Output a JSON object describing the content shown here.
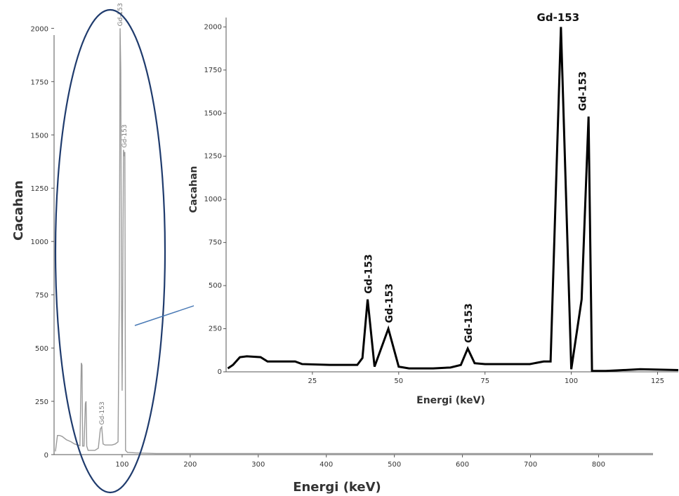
{
  "chart_data": [
    {
      "type": "line",
      "panel": "full-spectrum",
      "xlabel": "Energi (keV)",
      "ylabel": "Cacahan",
      "xlim": [
        0,
        880
      ],
      "ylim": [
        0,
        2100
      ],
      "x_ticks": [
        100,
        200,
        300,
        400,
        500,
        600,
        700,
        800
      ],
      "y_ticks": [
        0,
        250,
        500,
        750,
        1000,
        1250,
        1500,
        1750,
        2000
      ],
      "tick_labels_x": [
        "100",
        "200",
        "300",
        "400",
        "500",
        "600",
        "700",
        "800"
      ],
      "tick_labels_y": [
        "0",
        "250",
        "500",
        "750",
        "1000",
        "1250",
        "1500",
        "1750",
        "2000"
      ],
      "series": [
        {
          "color": "#9a9a9a",
          "x": [
            2,
            5,
            8,
            12,
            18,
            25,
            30,
            35,
            38,
            40,
            41,
            42,
            44,
            46,
            47,
            48,
            50,
            55,
            60,
            65,
            68,
            70,
            72,
            75,
            80,
            85,
            90,
            94,
            96,
            97,
            98,
            99,
            100,
            102,
            103,
            104,
            105,
            108,
            110,
            120,
            150,
            200,
            300,
            500,
            700,
            880
          ],
          "y": [
            15,
            90,
            90,
            85,
            70,
            60,
            50,
            45,
            42,
            430,
            420,
            40,
            40,
            240,
            250,
            40,
            20,
            20,
            20,
            30,
            120,
            130,
            50,
            45,
            45,
            45,
            50,
            60,
            800,
            2000,
            1800,
            800,
            300,
            1430,
            1400,
            1420,
            20,
            10,
            10,
            8,
            5,
            5,
            5,
            5,
            5,
            5
          ]
        }
      ],
      "annotations": [
        {
          "text": "Gd-153",
          "x": 97,
          "y": 2000
        },
        {
          "text": "Gd-153",
          "x": 103,
          "y": 1430
        },
        {
          "text": "Gd-153",
          "x": 70,
          "y": 130
        }
      ]
    },
    {
      "type": "line",
      "panel": "zoomed-inset",
      "xlabel": "Energi (keV)",
      "ylabel": "Cacahan",
      "xlim": [
        0,
        131
      ],
      "ylim": [
        0,
        2030
      ],
      "x_ticks": [
        25,
        50,
        75,
        100,
        125
      ],
      "y_ticks": [
        0,
        250,
        500,
        750,
        1000,
        1250,
        1500,
        1750,
        2000
      ],
      "tick_labels_x": [
        "25",
        "50",
        "75",
        "100",
        "125"
      ],
      "tick_labels_y": [
        "0",
        "250",
        "500",
        "750",
        "1000",
        "1250",
        "1500",
        "1750",
        "2000"
      ],
      "series": [
        {
          "color": "#000000",
          "x": [
            0.5,
            2,
            4,
            6,
            10,
            12,
            20,
            22,
            30,
            38,
            39.5,
            41,
            43,
            47,
            50,
            53,
            60,
            65,
            68,
            70,
            72,
            75,
            88,
            92,
            94,
            97,
            100,
            103,
            105,
            106,
            110,
            120,
            131
          ],
          "y": [
            20,
            40,
            85,
            90,
            85,
            60,
            60,
            45,
            40,
            40,
            80,
            420,
            30,
            250,
            30,
            20,
            20,
            25,
            40,
            135,
            50,
            45,
            45,
            60,
            60,
            2000,
            15,
            420,
            1480,
            5,
            5,
            15,
            10
          ]
        }
      ],
      "annotations": [
        {
          "text": "Gd-153",
          "x": 41,
          "y": 420
        },
        {
          "text": "Gd-153",
          "x": 47,
          "y": 250
        },
        {
          "text": "Gd-153",
          "x": 70,
          "y": 135
        },
        {
          "text": "Gd-153",
          "x": 97,
          "y": 2000
        },
        {
          "text": "Gd-153",
          "x": 103,
          "y": 1480
        }
      ]
    }
  ],
  "highlight_color": "#1f3b6d",
  "arrow_color": "#4a7ab5"
}
